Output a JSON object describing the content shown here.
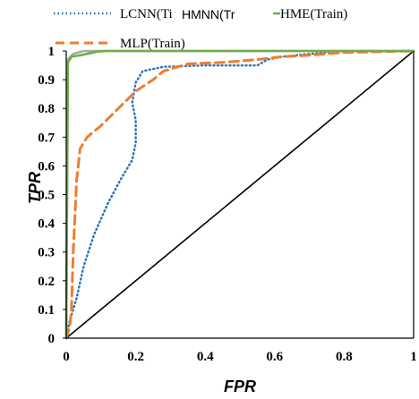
{
  "chart_data": {
    "type": "line",
    "xlabel": "FPR",
    "ylabel": "TPR",
    "xlim": [
      0,
      1
    ],
    "ylim": [
      0,
      1
    ],
    "x_ticks": [
      "0",
      "0.2",
      "0.4",
      "0.6",
      "0.8",
      "1"
    ],
    "y_ticks": [
      "0",
      "0.1",
      "0.2",
      "0.3",
      "0.4",
      "0.5",
      "0.6",
      "0.7",
      "0.8",
      "0.9",
      "1"
    ],
    "legend_position": "top",
    "grid": false,
    "series": [
      {
        "name": "LCNN(Ti",
        "color": "#2e75b6",
        "style": "dotted",
        "points": [
          [
            0,
            0
          ],
          [
            0.01,
            0.06
          ],
          [
            0.03,
            0.14
          ],
          [
            0.05,
            0.25
          ],
          [
            0.08,
            0.36
          ],
          [
            0.12,
            0.47
          ],
          [
            0.16,
            0.56
          ],
          [
            0.19,
            0.62
          ],
          [
            0.2,
            0.68
          ],
          [
            0.2,
            0.76
          ],
          [
            0.19,
            0.82
          ],
          [
            0.2,
            0.89
          ],
          [
            0.22,
            0.93
          ],
          [
            0.28,
            0.945
          ],
          [
            0.4,
            0.95
          ],
          [
            0.55,
            0.95
          ],
          [
            0.58,
            0.97
          ],
          [
            0.62,
            0.98
          ],
          [
            0.7,
            0.99
          ],
          [
            0.8,
            1
          ],
          [
            1,
            1
          ]
        ]
      },
      {
        "name": "HMNN(Tr",
        "color": "#a9a9a9",
        "style": "solid",
        "points": [
          [
            0,
            0
          ],
          [
            0.004,
            0.97
          ],
          [
            0.02,
            0.99
          ],
          [
            0.05,
            1
          ],
          [
            1,
            1
          ]
        ]
      },
      {
        "name": "HME(Train)",
        "color": "#70ad47",
        "style": "solid",
        "points": [
          [
            0,
            0
          ],
          [
            0.005,
            0.96
          ],
          [
            0.015,
            0.98
          ],
          [
            0.04,
            0.985
          ],
          [
            0.06,
            0.99
          ],
          [
            0.09,
            0.998
          ],
          [
            0.12,
            1
          ],
          [
            1,
            1
          ]
        ]
      },
      {
        "name": "MLP(Train)",
        "color": "#ed7d31",
        "style": "dashed",
        "points": [
          [
            0,
            0
          ],
          [
            0.01,
            0.04
          ],
          [
            0.015,
            0.1
          ],
          [
            0.02,
            0.3
          ],
          [
            0.03,
            0.55
          ],
          [
            0.04,
            0.66
          ],
          [
            0.06,
            0.7
          ],
          [
            0.1,
            0.74
          ],
          [
            0.15,
            0.8
          ],
          [
            0.2,
            0.86
          ],
          [
            0.25,
            0.9
          ],
          [
            0.28,
            0.93
          ],
          [
            0.35,
            0.955
          ],
          [
            0.45,
            0.96
          ],
          [
            0.55,
            0.97
          ],
          [
            0.62,
            0.98
          ],
          [
            0.7,
            0.985
          ],
          [
            0.8,
            0.995
          ],
          [
            1,
            1
          ]
        ]
      },
      {
        "name": "",
        "color": "#000000",
        "style": "solid",
        "points": [
          [
            0,
            0
          ],
          [
            1,
            1
          ]
        ]
      }
    ]
  }
}
